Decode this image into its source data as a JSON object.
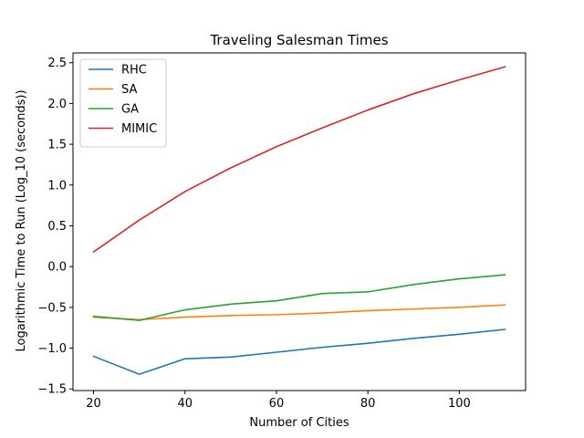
{
  "chart_data": {
    "type": "line",
    "title": "Traveling Salesman Times",
    "xlabel": "Number of Cities",
    "ylabel": "Logarithmic Time to Run (Log_10 (seconds))",
    "xlim": [
      15.5,
      114.5
    ],
    "ylim": [
      -1.52,
      2.62
    ],
    "x": [
      20,
      30,
      40,
      50,
      60,
      70,
      80,
      90,
      100,
      110
    ],
    "xticks": [
      20,
      40,
      60,
      80,
      100
    ],
    "xtick_labels": [
      "20",
      "40",
      "60",
      "80",
      "100"
    ],
    "yticks": [
      -1.5,
      -1.0,
      -0.5,
      0.0,
      0.5,
      1.0,
      1.5,
      2.0,
      2.5
    ],
    "ytick_labels": [
      "−1.5",
      "−1.0",
      "−0.5",
      "0.0",
      "0.5",
      "1.0",
      "1.5",
      "2.0",
      "2.5"
    ],
    "grid": false,
    "legend_position": "top-left",
    "series": [
      {
        "name": "RHC",
        "color": "#1f77b4",
        "values": [
          -1.1,
          -1.32,
          -1.13,
          -1.11,
          -1.05,
          -0.99,
          -0.94,
          -0.88,
          -0.83,
          -0.77
        ]
      },
      {
        "name": "SA",
        "color": "#ff7f0e",
        "values": [
          -0.62,
          -0.65,
          -0.62,
          -0.6,
          -0.59,
          -0.57,
          -0.54,
          -0.52,
          -0.5,
          -0.47
        ]
      },
      {
        "name": "GA",
        "color": "#2ca02c",
        "values": [
          -0.61,
          -0.66,
          -0.53,
          -0.46,
          -0.42,
          -0.33,
          -0.31,
          -0.22,
          -0.15,
          -0.1
        ]
      },
      {
        "name": "MIMIC",
        "color": "#d62728",
        "values": [
          0.18,
          0.57,
          0.92,
          1.21,
          1.47,
          1.7,
          1.92,
          2.12,
          2.29,
          2.45
        ]
      }
    ]
  }
}
